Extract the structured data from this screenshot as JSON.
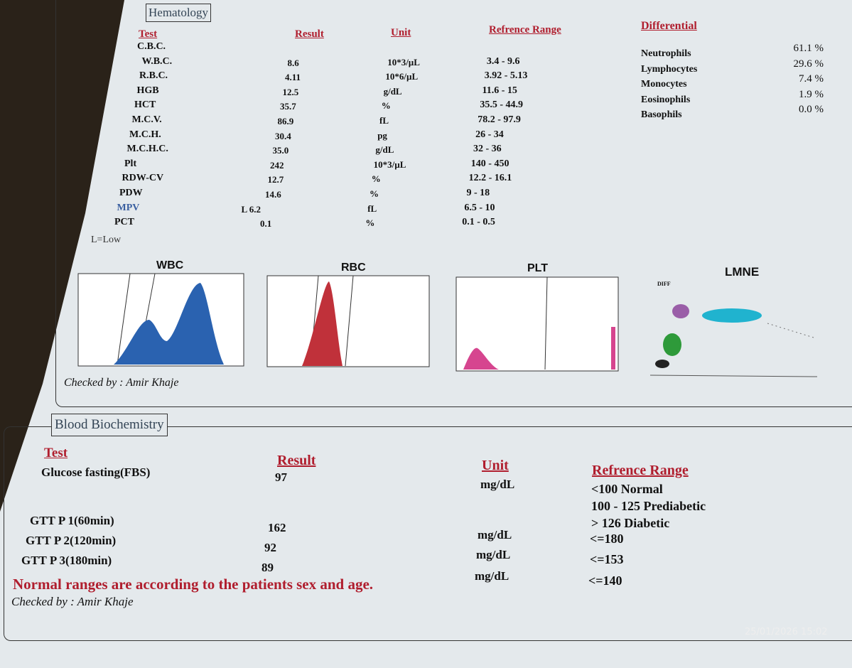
{
  "hematology": {
    "title": "Hematology",
    "headers": {
      "test": "Test",
      "result": "Result",
      "unit": "Unit",
      "range": "Refrence Range",
      "differential": "Differential"
    },
    "rows": [
      {
        "test": "C.B.C."
      },
      {
        "test": "W.B.C.",
        "result": "8.6",
        "unit": "10*3/µL",
        "range": "3.4 - 9.6"
      },
      {
        "test": "R.B.C.",
        "result": "4.11",
        "unit": "10*6/µL",
        "range": "3.92 - 5.13"
      },
      {
        "test": "HGB",
        "result": "12.5",
        "unit": "g/dL",
        "range": "11.6 - 15"
      },
      {
        "test": "HCT",
        "result": "35.7",
        "unit": "%",
        "range": "35.5 - 44.9"
      },
      {
        "test": "M.C.V.",
        "result": "86.9",
        "unit": "fL",
        "range": "78.2 - 97.9"
      },
      {
        "test": "M.C.H.",
        "result": "30.4",
        "unit": "pg",
        "range": "26 - 34"
      },
      {
        "test": "M.C.H.C.",
        "result": "35.0",
        "unit": "g/dL",
        "range": "32 - 36"
      },
      {
        "test": "Plt",
        "result": "242",
        "unit": "10*3/µL",
        "range": "140 - 450"
      },
      {
        "test": "RDW-CV",
        "result": "12.7",
        "unit": "%",
        "range": "12.2 - 16.1"
      },
      {
        "test": "PDW",
        "result": "14.6",
        "unit": "%",
        "range": "9 - 18"
      },
      {
        "test": "MPV",
        "result": "L 6.2",
        "unit": "fL",
        "range": "6.5 - 10"
      },
      {
        "test": "PCT",
        "result": "0.1",
        "unit": "%",
        "range": "0.1 - 0.5"
      }
    ],
    "differential": [
      {
        "name": "Neutrophils",
        "value": "61.1 %"
      },
      {
        "name": "Lymphocytes",
        "value": "29.6 %"
      },
      {
        "name": "Monocytes",
        "value": "7.4 %"
      },
      {
        "name": "Eosinophils",
        "value": "1.9 %"
      },
      {
        "name": "Basophils",
        "value": "0.0 %"
      }
    ],
    "legend": "L=Low",
    "graphs": {
      "wbc": "WBC",
      "rbc": "RBC",
      "plt": "PLT",
      "lmne": "LMNE",
      "diff": "DIFF"
    },
    "checked_by": "Checked by : Amir Khaje"
  },
  "biochemistry": {
    "title": "Blood Biochemistry",
    "headers": {
      "test": "Test",
      "result": "Result",
      "unit": "Unit",
      "range": "Refrence Range"
    },
    "rows": [
      {
        "test": "Glucose fasting(FBS)",
        "result": "97",
        "unit": "mg/dL",
        "range": [
          "<100 Normal",
          "100 - 125 Prediabetic",
          "> 126 Diabetic"
        ]
      },
      {
        "test": "GTT P 1(60min)",
        "result": "162",
        "unit": "mg/dL",
        "range": [
          "<=180"
        ]
      },
      {
        "test": "GTT P 2(120min)",
        "result": "92",
        "unit": "mg/dL",
        "range": [
          "<=153"
        ]
      },
      {
        "test": "GTT P 3(180min)",
        "result": "89",
        "unit": "mg/dL",
        "range": [
          "<=140"
        ]
      }
    ],
    "note": "Normal ranges are according to the patients sex and age.",
    "checked_by": "Checked by : Amir Khaje"
  },
  "timestamp": "25/01/2026 15:02"
}
